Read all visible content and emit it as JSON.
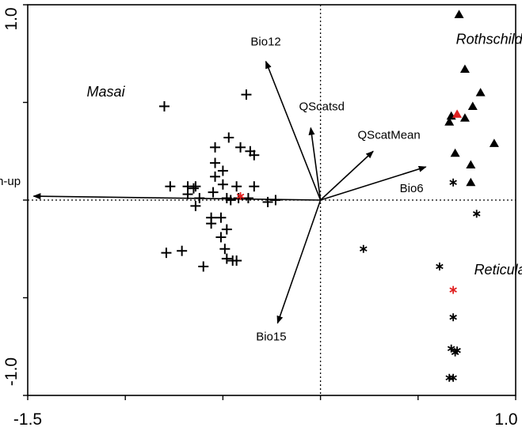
{
  "chart_data": {
    "type": "scatter",
    "title": "",
    "xlim": [
      -1.5,
      1.0
    ],
    "ylim": [
      -1.0,
      1.0
    ],
    "x_tick_labels": [
      "-1.5",
      "1.0"
    ],
    "y_tick_labels": [
      "1.0",
      "-1.0"
    ],
    "reference_lines": {
      "x": 0,
      "y": 0,
      "style": "dotted"
    },
    "colors": {
      "points": "#000000",
      "centroid": "#e02020",
      "axes": "#000000"
    },
    "vectors": [
      {
        "name": "Bio12",
        "x": -0.28,
        "y": 0.71
      },
      {
        "name": "QScatsd",
        "x": -0.05,
        "y": 0.37
      },
      {
        "name": "QScatMean",
        "x": 0.27,
        "y": 0.25
      },
      {
        "name": "Bio6",
        "x": 0.54,
        "y": 0.17
      },
      {
        "name": "Green-up",
        "x": -1.47,
        "y": 0.02
      },
      {
        "name": "Bio15",
        "x": -0.22,
        "y": -0.63
      }
    ],
    "group_labels": [
      {
        "name": "Masai",
        "x": -1.1,
        "y": 0.53
      },
      {
        "name": "Rothschild's",
        "x": 0.89,
        "y": 0.8
      },
      {
        "name": "Reticulated",
        "x": 0.97,
        "y": -0.38
      }
    ],
    "series": [
      {
        "name": "Masai",
        "marker": "plus",
        "points": [
          [
            -0.8,
            0.48
          ],
          [
            -0.38,
            0.54
          ],
          [
            -0.47,
            0.32
          ],
          [
            -0.54,
            0.27
          ],
          [
            -0.41,
            0.27
          ],
          [
            -0.36,
            0.25
          ],
          [
            -0.34,
            0.23
          ],
          [
            -0.54,
            0.19
          ],
          [
            -0.5,
            0.15
          ],
          [
            -0.54,
            0.12
          ],
          [
            -0.5,
            0.08
          ],
          [
            -0.77,
            0.07
          ],
          [
            -0.64,
            0.07
          ],
          [
            -0.68,
            0.07
          ],
          [
            -0.65,
            0.06
          ],
          [
            -0.55,
            0.04
          ],
          [
            -0.68,
            0.03
          ],
          [
            -0.43,
            0.07
          ],
          [
            -0.34,
            0.07
          ],
          [
            -0.48,
            0.01
          ],
          [
            -0.42,
            0.01
          ],
          [
            -0.37,
            0.01
          ],
          [
            -0.46,
            0.0
          ],
          [
            -0.62,
            0.01
          ],
          [
            -0.23,
            0.0
          ],
          [
            -0.27,
            -0.01
          ],
          [
            -0.64,
            -0.03
          ],
          [
            -0.56,
            -0.09
          ],
          [
            -0.51,
            -0.09
          ],
          [
            -0.56,
            -0.12
          ],
          [
            -0.48,
            -0.15
          ],
          [
            -0.51,
            -0.19
          ],
          [
            -0.71,
            -0.26
          ],
          [
            -0.49,
            -0.25
          ],
          [
            -0.79,
            -0.27
          ],
          [
            -0.48,
            -0.3
          ],
          [
            -0.43,
            -0.31
          ],
          [
            -0.45,
            -0.31
          ],
          [
            -0.6,
            -0.34
          ]
        ]
      },
      {
        "name": "Rothschild's",
        "marker": "triangle",
        "points": [
          [
            0.71,
            0.95
          ],
          [
            0.74,
            0.67
          ],
          [
            0.82,
            0.55
          ],
          [
            0.78,
            0.48
          ],
          [
            0.67,
            0.43
          ],
          [
            0.74,
            0.42
          ],
          [
            0.66,
            0.4
          ],
          [
            0.89,
            0.29
          ],
          [
            0.69,
            0.24
          ],
          [
            0.77,
            0.18
          ],
          [
            0.77,
            0.09
          ]
        ]
      },
      {
        "name": "Reticulated",
        "marker": "asterisk",
        "points": [
          [
            0.68,
            0.09
          ],
          [
            0.8,
            -0.07
          ],
          [
            0.22,
            -0.25
          ],
          [
            0.61,
            -0.34
          ],
          [
            0.68,
            -0.6
          ],
          [
            0.67,
            -0.76
          ],
          [
            0.7,
            -0.77
          ],
          [
            0.69,
            -0.78
          ],
          [
            0.66,
            -0.91
          ],
          [
            0.68,
            -0.91
          ]
        ]
      }
    ],
    "centroids": [
      {
        "group": "Masai",
        "x": -0.41,
        "y": 0.02,
        "marker": "asterisk"
      },
      {
        "group": "Rothschild's",
        "x": 0.7,
        "y": 0.44,
        "marker": "triangle"
      },
      {
        "group": "Reticulated",
        "x": 0.68,
        "y": -0.46,
        "marker": "asterisk"
      }
    ]
  }
}
